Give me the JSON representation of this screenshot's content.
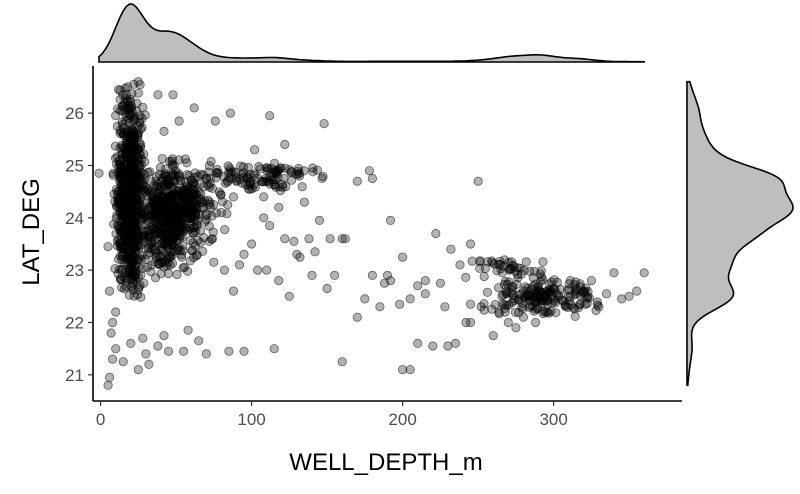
{
  "chart_data": {
    "type": "scatter",
    "xlabel": "WELL_DEPTH_m",
    "ylabel": "LAT_DEG",
    "xlim": [
      -5,
      385
    ],
    "ylim": [
      20.5,
      26.9
    ],
    "x_ticks": [
      0,
      100,
      200,
      300
    ],
    "y_ticks": [
      21,
      22,
      23,
      24,
      25,
      26
    ],
    "grid": false,
    "legend": "none",
    "marginal_top": "density of WELL_DEPTH_m",
    "marginal_right": "density of LAT_DEG",
    "colors": {
      "points": "#000000",
      "density_fill": "#bebebe",
      "density_line": "#000000"
    },
    "clusters": [
      {
        "x": [
          8,
          30
        ],
        "y": [
          22.3,
          26.6
        ],
        "n": 700
      },
      {
        "x": [
          20,
          70
        ],
        "y": [
          22.8,
          25.2
        ],
        "n": 450
      },
      {
        "x": [
          30,
          85
        ],
        "y": [
          23.5,
          25.0
        ],
        "n": 150
      },
      {
        "x": [
          60,
          150
        ],
        "y": [
          24.5,
          25.1
        ],
        "n": 110
      },
      {
        "x": [
          250,
          330
        ],
        "y": [
          22.1,
          22.9
        ],
        "n": 170
      },
      {
        "x": [
          240,
          300
        ],
        "y": [
          22.8,
          23.3
        ],
        "n": 40
      }
    ],
    "points": [
      [
        -1,
        24.85
      ],
      [
        5,
        20.8
      ],
      [
        6,
        20.95
      ],
      [
        8,
        21.3
      ],
      [
        10,
        21.5
      ],
      [
        15,
        21.25
      ],
      [
        20,
        21.6
      ],
      [
        25,
        21.1
      ],
      [
        30,
        21.4
      ],
      [
        28,
        21.7
      ],
      [
        32,
        21.2
      ],
      [
        38,
        21.55
      ],
      [
        45,
        21.45
      ],
      [
        42,
        21.75
      ],
      [
        55,
        21.45
      ],
      [
        58,
        21.85
      ],
      [
        65,
        21.65
      ],
      [
        70,
        21.4
      ],
      [
        85,
        21.45
      ],
      [
        95,
        21.45
      ],
      [
        115,
        21.5
      ],
      [
        160,
        21.25
      ],
      [
        200,
        21.1
      ],
      [
        205,
        21.1
      ],
      [
        210,
        21.6
      ],
      [
        220,
        21.55
      ],
      [
        230,
        21.55
      ],
      [
        235,
        21.6
      ],
      [
        245,
        22.0
      ],
      [
        180,
        22.9
      ],
      [
        185,
        22.3
      ],
      [
        190,
        22.9
      ],
      [
        200,
        23.25
      ],
      [
        215,
        22.8
      ],
      [
        222,
        23.7
      ],
      [
        228,
        22.3
      ],
      [
        150,
        22.65
      ],
      [
        155,
        22.9
      ],
      [
        160,
        23.6
      ],
      [
        170,
        22.1
      ],
      [
        175,
        22.45
      ],
      [
        140,
        22.9
      ],
      [
        130,
        23.3
      ],
      [
        125,
        22.5
      ],
      [
        118,
        22.8
      ],
      [
        110,
        23.0
      ],
      [
        100,
        23.5
      ],
      [
        95,
        23.3
      ],
      [
        135,
        24.3
      ],
      [
        145,
        23.95
      ],
      [
        152,
        23.6
      ],
      [
        162,
        23.6
      ],
      [
        170,
        24.7
      ],
      [
        178,
        24.9
      ],
      [
        180,
        24.75
      ],
      [
        192,
        23.95
      ],
      [
        250,
        24.7
      ],
      [
        112,
        25.95
      ],
      [
        148,
        25.8
      ],
      [
        122,
        25.4
      ],
      [
        102,
        25.3
      ],
      [
        86,
        26.0
      ],
      [
        76,
        25.85
      ],
      [
        62,
        26.1
      ],
      [
        52,
        25.85
      ],
      [
        48,
        26.35
      ],
      [
        38,
        26.35
      ],
      [
        42,
        25.65
      ],
      [
        12,
        26.45
      ],
      [
        25,
        26.6
      ],
      [
        22,
        26.55
      ],
      [
        18,
        26.5
      ],
      [
        5,
        23.45
      ],
      [
        6,
        22.6
      ],
      [
        7,
        21.8
      ],
      [
        8,
        22.0
      ],
      [
        10,
        22.2
      ],
      [
        260,
        21.75
      ],
      [
        270,
        22.0
      ],
      [
        275,
        21.9
      ],
      [
        280,
        22.1
      ],
      [
        252,
        22.3
      ],
      [
        360,
        22.95
      ],
      [
        355,
        22.6
      ],
      [
        345,
        22.45
      ],
      [
        340,
        22.95
      ],
      [
        335,
        22.55
      ],
      [
        330,
        22.3
      ],
      [
        320,
        22.6
      ],
      [
        245,
        23.5
      ],
      [
        232,
        23.4
      ],
      [
        238,
        23.1
      ],
      [
        225,
        22.75
      ],
      [
        215,
        22.55
      ],
      [
        210,
        22.7
      ],
      [
        198,
        22.35
      ],
      [
        192,
        22.8
      ],
      [
        205,
        22.45
      ],
      [
        188,
        22.75
      ],
      [
        245,
        22.35
      ],
      [
        242,
        22.0
      ],
      [
        268,
        22.2
      ],
      [
        288,
        22.0
      ],
      [
        296,
        22.2
      ],
      [
        308,
        22.3
      ],
      [
        315,
        22.65
      ],
      [
        325,
        22.8
      ],
      [
        350,
        22.5
      ],
      [
        75,
        23.15
      ],
      [
        82,
        23.0
      ],
      [
        88,
        22.6
      ],
      [
        92,
        23.1
      ],
      [
        104,
        23.0
      ],
      [
        108,
        24.0
      ],
      [
        112,
        23.85
      ],
      [
        118,
        24.2
      ],
      [
        122,
        23.6
      ],
      [
        128,
        23.55
      ],
      [
        132,
        23.25
      ],
      [
        138,
        23.6
      ],
      [
        142,
        23.35
      ],
      [
        108,
        24.4
      ],
      [
        98,
        24.55
      ],
      [
        88,
        24.4
      ],
      [
        80,
        24.1
      ],
      [
        72,
        23.55
      ]
    ]
  }
}
